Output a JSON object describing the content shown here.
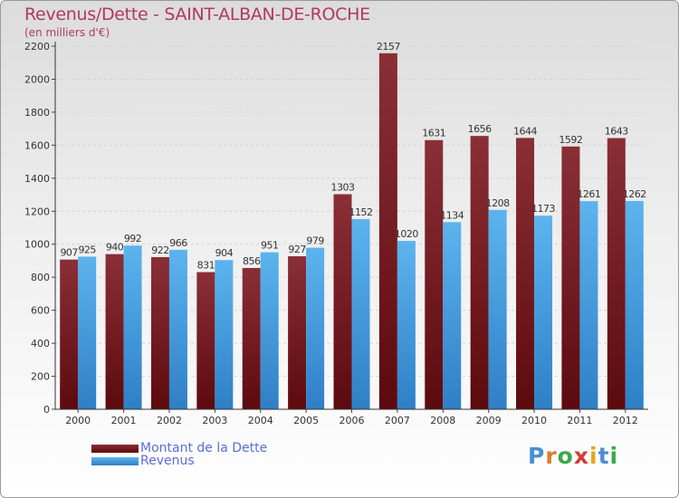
{
  "title": "Revenus/Dette - SAINT-ALBAN-DE-ROCHE",
  "subtitle": "(en milliers d'€)",
  "colors": {
    "dette_top": "#8a2f36",
    "dette_bottom": "#5c0a0e",
    "revenus_top": "#5cb4ee",
    "revenus_bottom": "#2f7fc6",
    "title": "#b03a5b",
    "legend_text": "#5a6fd6"
  },
  "legend": [
    {
      "label": "Montant de la Dette",
      "series": "dette"
    },
    {
      "label": "Revenus",
      "series": "revenus"
    }
  ],
  "logo": {
    "text": "Proxiti"
  },
  "chart_data": {
    "type": "bar",
    "title": "Revenus/Dette - SAINT-ALBAN-DE-ROCHE",
    "ylabel": "(en milliers d'€)",
    "xlabel": "",
    "ylim": [
      0,
      2200
    ],
    "yticks": [
      0,
      200,
      400,
      600,
      800,
      1000,
      1200,
      1400,
      1600,
      1800,
      2000,
      2200
    ],
    "grid": true,
    "categories": [
      "2000",
      "2001",
      "2002",
      "2003",
      "2004",
      "2005",
      "2006",
      "2007",
      "2008",
      "2009",
      "2010",
      "2011",
      "2012"
    ],
    "series": [
      {
        "name": "Montant de la Dette",
        "key": "dette",
        "values": [
          907,
          940,
          922,
          831,
          856,
          927,
          1303,
          2157,
          1631,
          1656,
          1644,
          1592,
          1643
        ]
      },
      {
        "name": "Revenus",
        "key": "revenus",
        "values": [
          925,
          992,
          966,
          904,
          951,
          979,
          1152,
          1020,
          1134,
          1208,
          1173,
          1261,
          1262
        ]
      }
    ]
  }
}
